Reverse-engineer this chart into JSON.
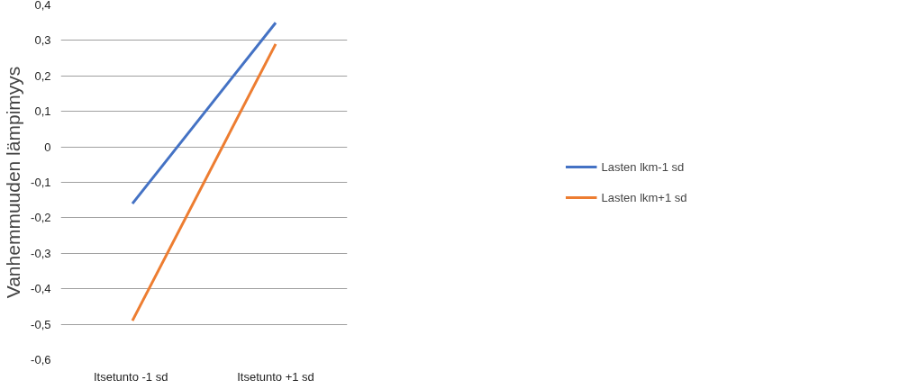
{
  "chart_data": {
    "type": "line",
    "ylabel": "Vanhemmuuden lämpimyys",
    "categories": [
      "Itsetunto  -1 sd",
      "Itsetunto +1 sd"
    ],
    "series": [
      {
        "name": "Lasten lkm-1 sd",
        "color": "#4472c4",
        "values": [
          -0.16,
          0.35
        ]
      },
      {
        "name": "Lasten lkm+1 sd",
        "color": "#ed7d31",
        "values": [
          -0.49,
          0.29
        ]
      }
    ],
    "ylim": [
      -0.6,
      0.4
    ],
    "yticks": [
      {
        "value": -0.6,
        "label": "-0,6"
      },
      {
        "value": -0.5,
        "label": "-0,5"
      },
      {
        "value": -0.4,
        "label": "-0,4"
      },
      {
        "value": -0.3,
        "label": "-0,3"
      },
      {
        "value": -0.2,
        "label": "-0,2"
      },
      {
        "value": -0.1,
        "label": "-0,1"
      },
      {
        "value": 0,
        "label": "0"
      },
      {
        "value": 0.1,
        "label": "0,1"
      },
      {
        "value": 0.2,
        "label": "0,2"
      },
      {
        "value": 0.3,
        "label": "0,3"
      },
      {
        "value": 0.4,
        "label": "0,4"
      }
    ],
    "grid": "y",
    "legend": "right",
    "marker": "none",
    "line_style": "solid"
  }
}
